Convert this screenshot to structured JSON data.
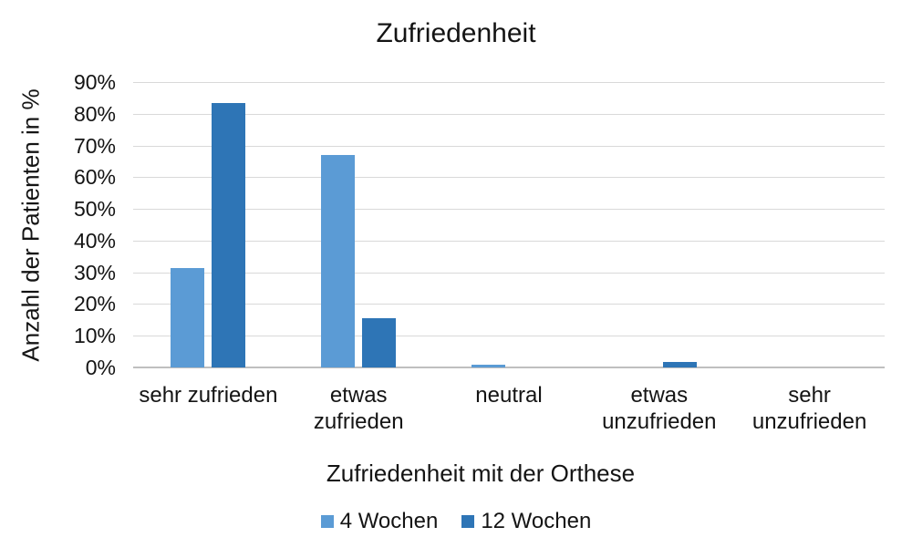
{
  "page": {
    "background": "#ffffff",
    "text_color": "#000000"
  },
  "chart_data": {
    "type": "bar",
    "title": "Zufriedenheit",
    "categories": [
      "sehr zufrieden",
      "etwas\nzufrieden",
      "neutral",
      "etwas\nunzufrieden",
      "sehr\nunzufrieden"
    ],
    "series": [
      {
        "name": "4 Wochen",
        "color": "#5B9BD5",
        "values": [
          31.5,
          67,
          1,
          0,
          0
        ]
      },
      {
        "name": "12 Wochen",
        "color": "#2E75B6",
        "values": [
          83.5,
          15.5,
          0,
          1.8,
          0
        ]
      }
    ],
    "xlabel": "Zufriedenheit mit der Orthese",
    "ylabel": "Anzahl der Patienten in %",
    "ylim": [
      0,
      90
    ],
    "ytick_labels": [
      "90%",
      "80%",
      "70%",
      "60%",
      "50%",
      "40%",
      "30%",
      "20%",
      "10%",
      "0%"
    ],
    "grid": true,
    "legend_position": "bottom",
    "gridline_color": "#D9D9D9",
    "axis_line_color": "#BFBFBF"
  }
}
